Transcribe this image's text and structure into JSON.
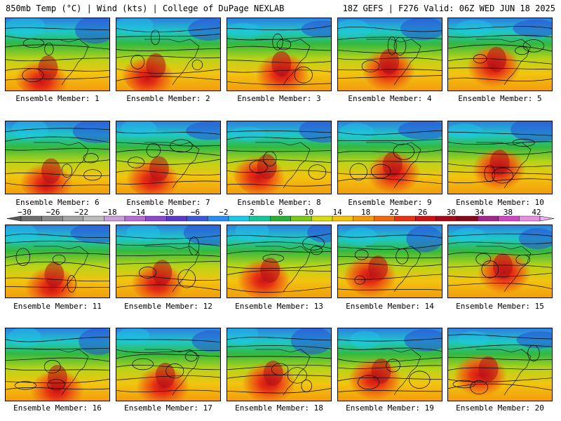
{
  "header": {
    "left": "850mb Temp (°C) | Wind (kts) | College of DuPage NEXLAB",
    "right": "18Z GEFS | F276 Valid: 06Z WED JUN 18 2025"
  },
  "panels": [
    {
      "label": "Ensemble Member: 1"
    },
    {
      "label": "Ensemble Member: 2"
    },
    {
      "label": "Ensemble Member: 3"
    },
    {
      "label": "Ensemble Member: 4"
    },
    {
      "label": "Ensemble Member: 5"
    },
    {
      "label": "Ensemble Member: 6"
    },
    {
      "label": "Ensemble Member: 7"
    },
    {
      "label": "Ensemble Member: 8"
    },
    {
      "label": "Ensemble Member: 9"
    },
    {
      "label": "Ensemble Member: 10"
    },
    {
      "label": "Ensemble Member: 11"
    },
    {
      "label": "Ensemble Member: 12"
    },
    {
      "label": "Ensemble Member: 13"
    },
    {
      "label": "Ensemble Member: 14"
    },
    {
      "label": "Ensemble Member: 15"
    },
    {
      "label": "Ensemble Member: 16"
    },
    {
      "label": "Ensemble Member: 17"
    },
    {
      "label": "Ensemble Member: 18"
    },
    {
      "label": "Ensemble Member: 19"
    },
    {
      "label": "Ensemble Member: 20"
    }
  ],
  "colorbar": {
    "tick_labels": [
      "−30",
      "−26",
      "−22",
      "−18",
      "−14",
      "−10",
      "−6",
      "−2",
      "2",
      "6",
      "10",
      "14",
      "18",
      "22",
      "26",
      "30",
      "34",
      "38",
      "42"
    ],
    "colors": [
      "#6e6e6e",
      "#8a8a8a",
      "#a4a4a4",
      "#bcbcbc",
      "#c9a0d8",
      "#b56ed0",
      "#8b48c8",
      "#5a3cc4",
      "#3c5ad6",
      "#2a8ef0",
      "#1ec8e6",
      "#18c49a",
      "#2ab03a",
      "#7cc81c",
      "#d8dc18",
      "#f2c410",
      "#f29a0c",
      "#ee6a10",
      "#e63214",
      "#c81414",
      "#a00c1c",
      "#84081c",
      "#a02888",
      "#d048c0",
      "#e890e0"
    ]
  }
}
